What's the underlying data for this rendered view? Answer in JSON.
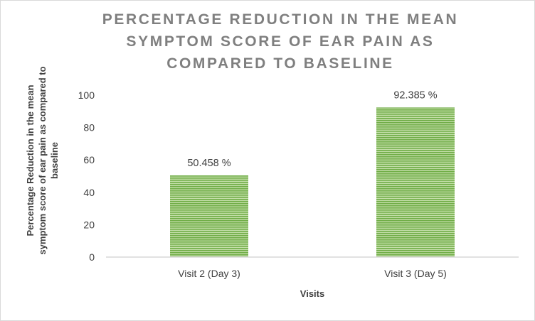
{
  "chart_data": {
    "type": "bar",
    "title_lines": [
      "PERCENTAGE REDUCTION IN THE MEAN",
      "SYMPTOM SCORE OF EAR PAIN AS",
      "COMPARED TO BASELINE"
    ],
    "xlabel": "Visits",
    "ylabel_lines": [
      "Percentage Reduction in the mean",
      "symptom score of ear pain as compared to",
      "baseline"
    ],
    "categories": [
      "Visit 2 (Day 3)",
      "Visit 3 (Day 5)"
    ],
    "values": [
      50.458,
      92.385
    ],
    "data_labels": [
      "50.458 %",
      "92.385 %"
    ],
    "y_ticks": [
      0,
      20,
      40,
      60,
      80,
      100
    ],
    "y_tick_labels": [
      "0",
      "20",
      "40",
      "60",
      "80",
      "100"
    ],
    "ylim": [
      0,
      100
    ],
    "grid": false,
    "legend": "none",
    "bar_color": "#7ab648",
    "bar_pattern": "horizontal stripes"
  }
}
